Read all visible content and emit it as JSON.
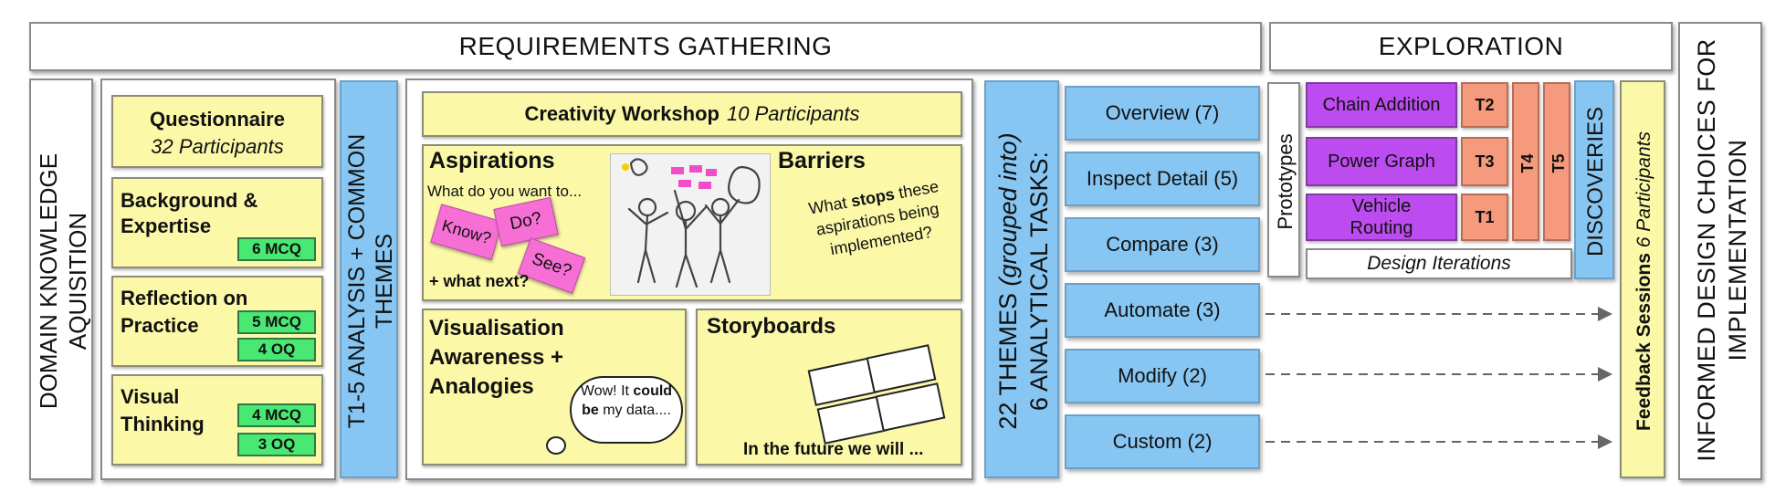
{
  "headers": {
    "requirements": "REQUIREMENTS GATHERING",
    "exploration": "EXPLORATION",
    "informed": "INFORMED DESIGN CHOICES FOR IMPLEMENTATION"
  },
  "domain_knowledge": "DOMAIN KNOWLEDGE AQUISITION",
  "questionnaire": {
    "title": "Questionnaire",
    "participants": "32 Participants",
    "sections": [
      {
        "title": "Background & Expertise",
        "badges": [
          "6 MCQ"
        ]
      },
      {
        "title": "Reflection on Practice",
        "badges": [
          "5 MCQ",
          "4 OQ"
        ]
      },
      {
        "title": "Visual Thinking",
        "badges": [
          "4 MCQ",
          "3 OQ"
        ]
      }
    ]
  },
  "analysis": "T1-5 ANALYSIS + COMMON THEMES",
  "workshop": {
    "title": "Creativity Workshop",
    "participants": "10 Participants",
    "aspirations": {
      "title": "Aspirations",
      "prompt": "What do you want to...",
      "notes": [
        "Know?",
        "Do?",
        "See?"
      ],
      "next": "+ what next?"
    },
    "barriers": {
      "title": "Barriers",
      "text_pre": "What ",
      "text_bold": "stops",
      "text_post": " these aspirations being implemented?"
    },
    "visualisation": {
      "title": "Visualisation Awareness + Analogies",
      "bubble_pre": "Wow! It ",
      "bubble_bold": "could be",
      "bubble_post": " my data...."
    },
    "storyboards": {
      "title": "Storyboards",
      "caption": "In the future we will ..."
    }
  },
  "themes": {
    "pre": "22 THEMES ",
    "italic": "(grouped into)",
    "post": "6 ANALYTICAL TASKS:"
  },
  "tasks": [
    "Overview (7)",
    "Inspect Detail (5)",
    "Compare (3)",
    "Automate (3)",
    "Modify (2)",
    "Custom (2)"
  ],
  "prototypes": {
    "label": "Prototypes",
    "items": [
      {
        "name": "Chain Addition",
        "tag": "T2"
      },
      {
        "name": "Power Graph",
        "tag": "T3"
      },
      {
        "name": "Vehicle Routing",
        "tag": "T1"
      }
    ],
    "tall_tags": [
      "T4",
      "T5"
    ],
    "iterations": "Design Iterations"
  },
  "discoveries": "DISCOVERIES",
  "feedback": {
    "title": "Feedback Sessions",
    "participants": "6 Participants"
  },
  "colors": {
    "yellow": "#fbf8a8",
    "blue": "#87c6f2",
    "purple": "#bd4cf0",
    "salmon": "#f59a7c",
    "green": "#48e873",
    "pink": "#f56fd4"
  }
}
